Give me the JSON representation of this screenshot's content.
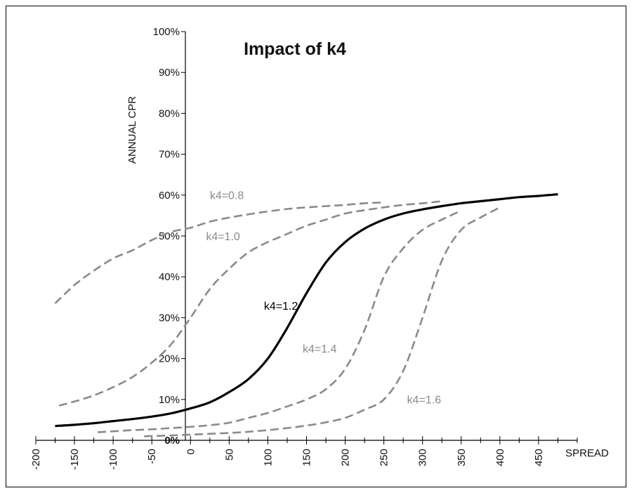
{
  "chart_data": {
    "type": "line",
    "title": "Impact of k4",
    "xlabel": "SPREAD",
    "ylabel": "ANNUAL CPR",
    "xlim": [
      -200,
      500
    ],
    "ylim": [
      0,
      100
    ],
    "xticks": [
      -200,
      -150,
      -100,
      -50,
      0,
      50,
      100,
      150,
      200,
      250,
      300,
      350,
      400,
      450
    ],
    "xtick_labels": [
      "-200",
      "-150",
      "-100",
      "-50",
      "0",
      "50",
      "100",
      "150",
      "200",
      "250",
      "300",
      "350",
      "400",
      "450"
    ],
    "yticks": [
      0,
      10,
      20,
      30,
      40,
      50,
      60,
      70,
      80,
      90,
      100
    ],
    "ytick_labels": [
      "0%",
      "10%",
      "20%",
      "30%",
      "40%",
      "50%",
      "60%",
      "70%",
      "80%",
      "90%",
      "100%"
    ],
    "grid": false,
    "legend": "none",
    "series": [
      {
        "name": "k4=0.8",
        "style": "dashed",
        "color": "#8a8a8a",
        "label_at": [
          25,
          59
        ],
        "x": [
          -175,
          -150,
          -125,
          -100,
          -75,
          -50,
          -25,
          0,
          25,
          50,
          75,
          100,
          125,
          150,
          175,
          200,
          225,
          250
        ],
        "y": [
          33.5,
          38,
          41.5,
          44.5,
          46.5,
          49,
          51,
          52,
          53.5,
          54.5,
          55.3,
          56,
          56.6,
          57,
          57.3,
          57.6,
          58,
          58.2
        ]
      },
      {
        "name": "k4=1.0",
        "style": "dashed",
        "color": "#8a8a8a",
        "label_at": [
          20,
          49
        ],
        "x": [
          -170,
          -150,
          -125,
          -100,
          -75,
          -50,
          -25,
          0,
          25,
          50,
          75,
          100,
          125,
          150,
          175,
          200,
          225,
          250,
          275,
          300,
          325
        ],
        "y": [
          8.5,
          9.5,
          11,
          13,
          15.5,
          19,
          23.5,
          30,
          37,
          42,
          46,
          48.5,
          50.5,
          52.5,
          54,
          55.5,
          56.3,
          57,
          57.6,
          58,
          58.5
        ]
      },
      {
        "name": "k4=1.2",
        "style": "solid",
        "color": "#000000",
        "label_at": [
          95,
          32
        ],
        "x": [
          -175,
          -150,
          -125,
          -100,
          -75,
          -50,
          -25,
          0,
          25,
          50,
          75,
          100,
          125,
          150,
          175,
          200,
          225,
          250,
          275,
          300,
          325,
          350,
          375,
          400,
          425,
          450,
          475
        ],
        "y": [
          3.5,
          3.8,
          4.2,
          4.7,
          5.2,
          5.8,
          6.6,
          7.8,
          9.3,
          11.8,
          15,
          20,
          27.5,
          36,
          43.5,
          48.5,
          51.8,
          54,
          55.5,
          56.5,
          57.3,
          58,
          58.5,
          59,
          59.5,
          59.8,
          60.2
        ]
      },
      {
        "name": "k4=1.4",
        "style": "dashed",
        "color": "#8a8a8a",
        "label_at": [
          145,
          21.5
        ],
        "x": [
          -120,
          -100,
          -75,
          -50,
          -25,
          0,
          25,
          50,
          75,
          100,
          125,
          150,
          175,
          200,
          225,
          250,
          275,
          300,
          325,
          350
        ],
        "y": [
          2,
          2.2,
          2.5,
          2.7,
          3,
          3.3,
          3.7,
          4.3,
          5.5,
          6.7,
          8.3,
          10,
          12.5,
          17.5,
          27,
          40,
          47,
          51.5,
          54,
          56.2
        ]
      },
      {
        "name": "k4=1.6",
        "style": "dashed",
        "color": "#8a8a8a",
        "label_at": [
          280,
          9
        ],
        "x": [
          -60,
          -25,
          0,
          25,
          50,
          75,
          100,
          125,
          150,
          175,
          200,
          225,
          250,
          275,
          300,
          325,
          350,
          375,
          400
        ],
        "y": [
          1,
          1.2,
          1.4,
          1.6,
          1.8,
          2.1,
          2.5,
          3,
          3.6,
          4.4,
          5.5,
          7.5,
          10,
          17,
          30,
          44,
          51.5,
          54.5,
          57
        ]
      }
    ]
  }
}
